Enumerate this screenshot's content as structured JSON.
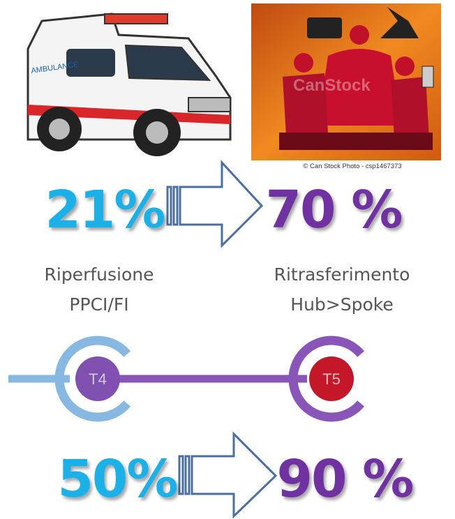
{
  "top_stat": {
    "from": "21%",
    "to": "70 %"
  },
  "photo_credit": "© Can Stock Photo - csp1467373",
  "watermark": "CanStock",
  "image_texts": {
    "ambulance": "AMBULANCE"
  },
  "labels": [
    {
      "lines": [
        "Riperfusione",
        "PPCI/FI"
      ]
    },
    {
      "lines": [
        "Ritrasferimento",
        "Hub>Spoke"
      ]
    }
  ],
  "nodes": [
    {
      "label": "T4"
    },
    {
      "label": "T5"
    }
  ],
  "bottom_stat": {
    "from": "50%",
    "to": "90 %"
  }
}
